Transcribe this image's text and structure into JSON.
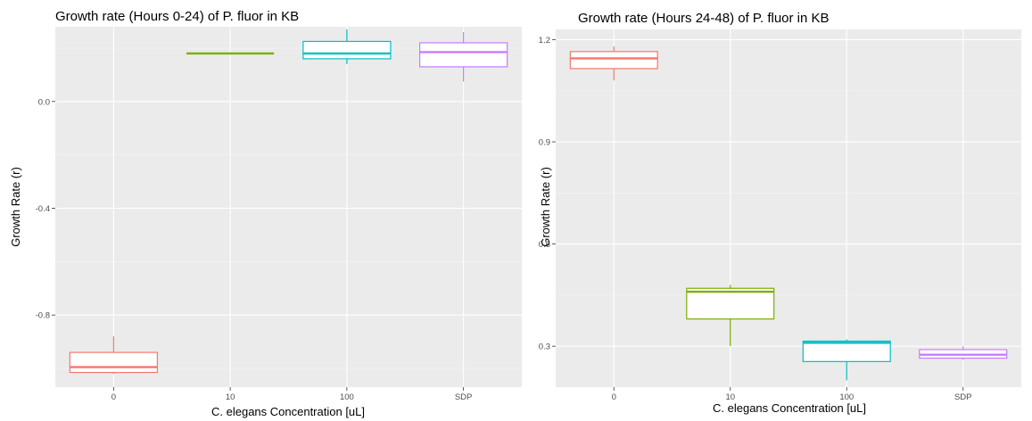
{
  "chart_data": [
    {
      "type": "box",
      "title": "Growth rate (Hours 0-24) of P. fluor in KB",
      "xlabel": "C. elegans Concentration [uL]",
      "ylabel": "Growth Rate (r)",
      "categories": [
        "0",
        "10",
        "100",
        "SDP"
      ],
      "colors": [
        "#F8766D",
        "#7CAE00",
        "#00BFC4",
        "#C77CFF"
      ],
      "ylim": [
        -1.07,
        0.28
      ],
      "yticks": [
        0.0,
        -0.4,
        -0.8
      ],
      "ytick_labels": [
        "0.0",
        "-0.4",
        "-0.8"
      ],
      "grid": true,
      "boxes": [
        {
          "category": "0",
          "min": -1.02,
          "q1": -1.015,
          "median": -0.995,
          "q3": -0.94,
          "max": -0.88
        },
        {
          "category": "10",
          "min": 0.18,
          "q1": 0.18,
          "median": 0.18,
          "q3": 0.18,
          "max": 0.18
        },
        {
          "category": "100",
          "min": 0.14,
          "q1": 0.16,
          "median": 0.18,
          "q3": 0.225,
          "max": 0.27
        },
        {
          "category": "SDP",
          "min": 0.075,
          "q1": 0.13,
          "median": 0.185,
          "q3": 0.22,
          "max": 0.26
        }
      ]
    },
    {
      "type": "box",
      "title": "Growth rate (Hours 24-48) of P. fluor in KB",
      "xlabel": "C. elegans Concentration [uL]",
      "ylabel": "Growth Rate (r)",
      "categories": [
        "0",
        "10",
        "100",
        "SDP"
      ],
      "colors": [
        "#F8766D",
        "#7CAE00",
        "#00BFC4",
        "#C77CFF"
      ],
      "ylim": [
        0.18,
        1.23
      ],
      "yticks": [
        1.2,
        0.9,
        0.6,
        0.3
      ],
      "ytick_labels": [
        "1.2",
        "0.9",
        "0.6",
        "0.3"
      ],
      "grid": true,
      "boxes": [
        {
          "category": "0",
          "min": 1.08,
          "q1": 1.115,
          "median": 1.145,
          "q3": 1.165,
          "max": 1.18
        },
        {
          "category": "10",
          "min": 0.3,
          "q1": 0.38,
          "median": 0.46,
          "q3": 0.47,
          "max": 0.48
        },
        {
          "category": "100",
          "min": 0.2,
          "q1": 0.255,
          "median": 0.31,
          "q3": 0.315,
          "max": 0.32
        },
        {
          "category": "SDP",
          "min": 0.26,
          "q1": 0.265,
          "median": 0.275,
          "q3": 0.29,
          "max": 0.3
        }
      ]
    }
  ]
}
